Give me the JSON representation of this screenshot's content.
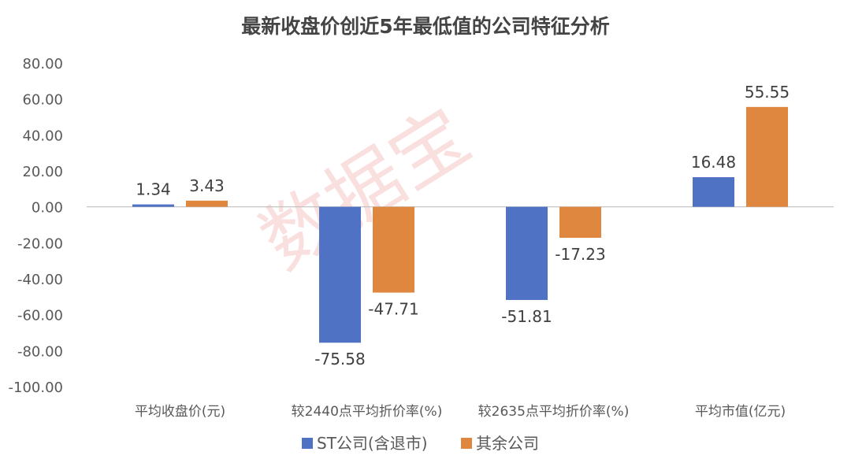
{
  "chart_data": {
    "type": "bar",
    "title": "最新收盘价创近5年最低值的公司特征分析",
    "categories": [
      "平均收盘价(元)",
      "较2440点平均折价率(%)",
      "较2635点平均折价率(%)",
      "平均市值(亿元)"
    ],
    "series": [
      {
        "name": "ST公司(含退市)",
        "values": [
          1.34,
          -75.58,
          -51.81,
          16.48
        ],
        "color": "#4F72C4"
      },
      {
        "name": "其余公司",
        "values": [
          3.43,
          -47.71,
          -17.23,
          55.55
        ],
        "color": "#E0873F"
      }
    ],
    "data_labels": [
      [
        "1.34",
        "-75.58",
        "-51.81",
        "16.48"
      ],
      [
        "3.43",
        "-47.71",
        "-17.23",
        "55.55"
      ]
    ],
    "ylim": [
      -100,
      80
    ],
    "y_ticks": [
      80,
      60,
      40,
      20,
      0,
      -20,
      -40,
      -60,
      -80,
      -100
    ],
    "y_tick_labels": [
      "80.00",
      "60.00",
      "40.00",
      "20.00",
      "0.00",
      "-20.00",
      "-40.00",
      "-60.00",
      "-80.00",
      "-100.00"
    ],
    "legend_position": "bottom",
    "grid": false,
    "xlabel": "",
    "ylabel": ""
  },
  "watermark": "数据宝"
}
